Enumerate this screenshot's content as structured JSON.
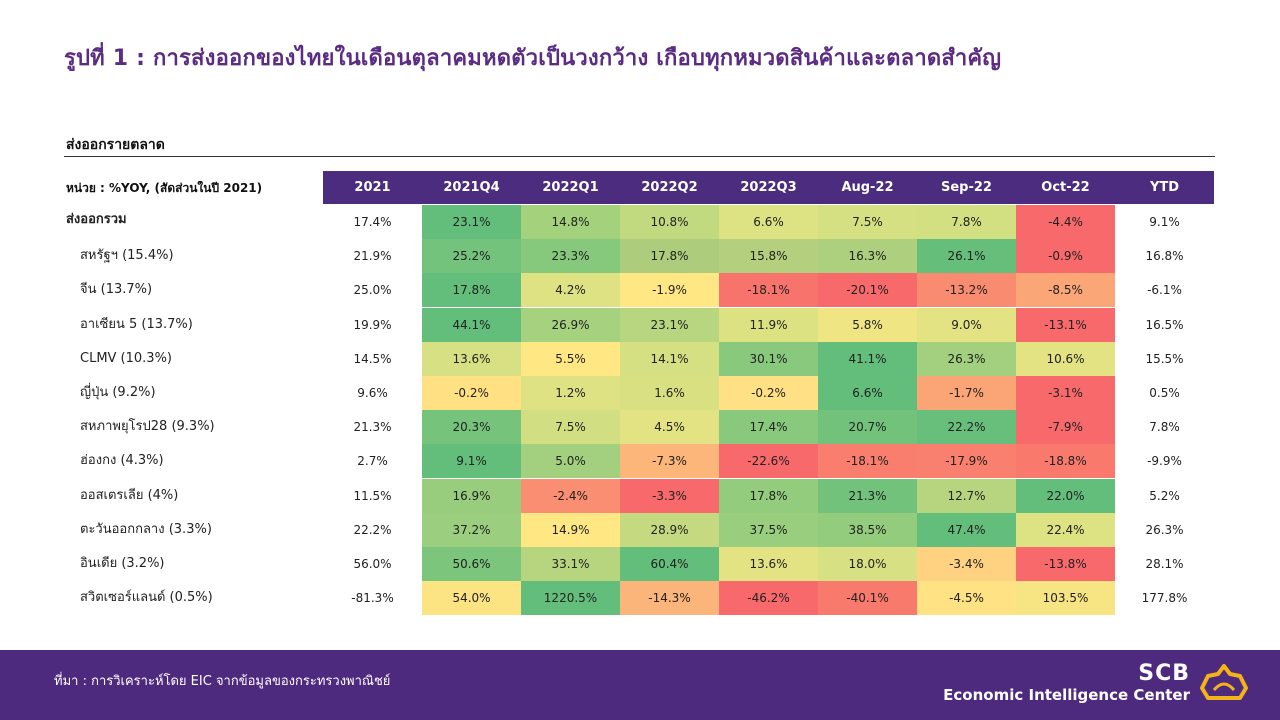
{
  "title": "รูปที่ 1 : การส่งออกของไทยในเดือนตุลาคมหดตัวเป็นวงกว้าง  เกือบทุกหมวดสินค้าและตลาดสำคัญ",
  "section_label": "ส่งออกรายตลาด",
  "unit_label": "หน่วย : %YOY, (สัดส่วนในปี 2021)",
  "columns": [
    "2021",
    "2021Q4",
    "2022Q1",
    "2022Q2",
    "2022Q3",
    "Aug-22",
    "Sep-22",
    "Oct-22",
    "YTD"
  ],
  "rows": [
    {
      "label": "ส่งออกรวม",
      "total": true,
      "values": [
        "17.4%",
        "23.1%",
        "14.8%",
        "10.8%",
        "6.6%",
        "7.5%",
        "7.8%",
        "-4.4%",
        "9.1%"
      ],
      "heat": [
        null,
        "#63be7b",
        "#a3d17c",
        "#c1da80",
        "#dde382",
        "#d4e081",
        "#d3e081",
        "#f8696b",
        null
      ]
    },
    {
      "label": "สหรัฐฯ (15.4%)",
      "values": [
        "21.9%",
        "25.2%",
        "23.3%",
        "17.8%",
        "15.8%",
        "16.3%",
        "26.1%",
        "-0.9%",
        "16.8%"
      ],
      "heat": [
        null,
        "#74c37c",
        "#86c97d",
        "#adcd7c",
        "#b4d07e",
        "#add07e",
        "#65bf7b",
        "#f8696b",
        null
      ]
    },
    {
      "label": "จีน (13.7%)",
      "values": [
        "25.0%",
        "17.8%",
        "4.2%",
        "-1.9%",
        "-18.1%",
        "-20.1%",
        "-13.2%",
        "-8.5%",
        "-6.1%"
      ],
      "heat": [
        null,
        "#63be7b",
        "#dfe283",
        "#ffe884",
        "#f8736c",
        "#f8696b",
        "#f98b70",
        "#fba677",
        null
      ]
    },
    {
      "label": "อาเซียน 5 (13.7%)",
      "values": [
        "19.9%",
        "44.1%",
        "26.9%",
        "23.1%",
        "11.9%",
        "5.8%",
        "9.0%",
        "-13.1%",
        "16.5%"
      ],
      "heat": [
        null,
        "#63be7b",
        "#a6d17e",
        "#b8d57f",
        "#dce282",
        "#efe583",
        "#e4e383",
        "#f8696b",
        null
      ]
    },
    {
      "label": "CLMV (10.3%)",
      "values": [
        "14.5%",
        "13.6%",
        "5.5%",
        "14.1%",
        "30.1%",
        "41.1%",
        "26.3%",
        "10.6%",
        "15.5%"
      ],
      "heat": [
        null,
        "#d7e082",
        "#ffe884",
        "#d5e082",
        "#88c97d",
        "#63be7b",
        "#a2d07e",
        "#e4e383",
        null
      ]
    },
    {
      "label": "ญี่ปุ่น (9.2%)",
      "values": [
        "9.6%",
        "-0.2%",
        "1.2%",
        "1.6%",
        "-0.2%",
        "6.6%",
        "-1.7%",
        "-3.1%",
        "0.5%"
      ],
      "heat": [
        null,
        "#ffe083",
        "#dfe283",
        "#d9e082",
        "#ffe084",
        "#63be7b",
        "#fba577",
        "#f8696b",
        null
      ]
    },
    {
      "label": "สหภาพยุโรป28 (9.3%)",
      "values": [
        "21.3%",
        "20.3%",
        "7.5%",
        "4.5%",
        "17.4%",
        "20.7%",
        "22.2%",
        "-7.9%",
        "7.8%"
      ],
      "heat": [
        null,
        "#76c47c",
        "#d1df82",
        "#e3e383",
        "#88c97d",
        "#72c27c",
        "#67bf7b",
        "#f8696b",
        null
      ]
    },
    {
      "label": "ฮ่องกง (4.3%)",
      "values": [
        "2.7%",
        "9.1%",
        "5.0%",
        "-7.3%",
        "-22.6%",
        "-18.1%",
        "-17.9%",
        "-18.8%",
        "-9.9%"
      ],
      "heat": [
        null,
        "#63be7b",
        "#a3d07e",
        "#fcb679",
        "#f8696b",
        "#f97e6e",
        "#f97f6e",
        "#f97a6d",
        null
      ]
    },
    {
      "label": "ออสเตรเลีย (4%)",
      "values": [
        "11.5%",
        "16.9%",
        "-2.4%",
        "-3.3%",
        "17.8%",
        "21.3%",
        "12.7%",
        "22.0%",
        "5.2%"
      ],
      "heat": [
        null,
        "#98cd7e",
        "#fa8e72",
        "#f8696b",
        "#93cc7d",
        "#72c27c",
        "#b7d57f",
        "#63be7b",
        null
      ]
    },
    {
      "label": "ตะวันออกกลาง (3.3%)",
      "values": [
        "22.2%",
        "37.2%",
        "14.9%",
        "28.9%",
        "37.5%",
        "38.5%",
        "47.4%",
        "22.4%",
        "26.3%"
      ],
      "heat": [
        null,
        "#9bce7e",
        "#ffe884",
        "#c5da80",
        "#99ce7e",
        "#93cc7d",
        "#63be7b",
        "#dde283",
        null
      ]
    },
    {
      "label": "อินเดีย (3.2%)",
      "values": [
        "56.0%",
        "50.6%",
        "33.1%",
        "60.4%",
        "13.6%",
        "18.0%",
        "-3.4%",
        "-13.8%",
        "28.1%"
      ],
      "heat": [
        null,
        "#7bc57c",
        "#b7d47f",
        "#63be7b",
        "#e4e383",
        "#d7e082",
        "#fed280",
        "#f8696b",
        null
      ]
    },
    {
      "label": "สวิตเซอร์แลนด์ (0.5%)",
      "values": [
        "-81.3%",
        "54.0%",
        "1220.5%",
        "-14.3%",
        "-46.2%",
        "-40.1%",
        "-4.5%",
        "103.5%",
        "177.8%"
      ],
      "heat": [
        null,
        "#fde482",
        "#63be7b",
        "#fbb479",
        "#f8696b",
        "#f87a6d",
        "#fee283",
        "#f7e583",
        null
      ]
    }
  ],
  "source": "ที่มา : การวิเคราะห์โดย EIC จากข้อมูลของกระทรวงพาณิชย์",
  "brand": {
    "name": "SCB",
    "sub": "Economic Intelligence Center"
  },
  "colors": {
    "header_bg": "#4b2c7f",
    "footer_bg": "#4e2a7f",
    "title": "#5b2c83",
    "logo_gold": "#f2b416"
  }
}
